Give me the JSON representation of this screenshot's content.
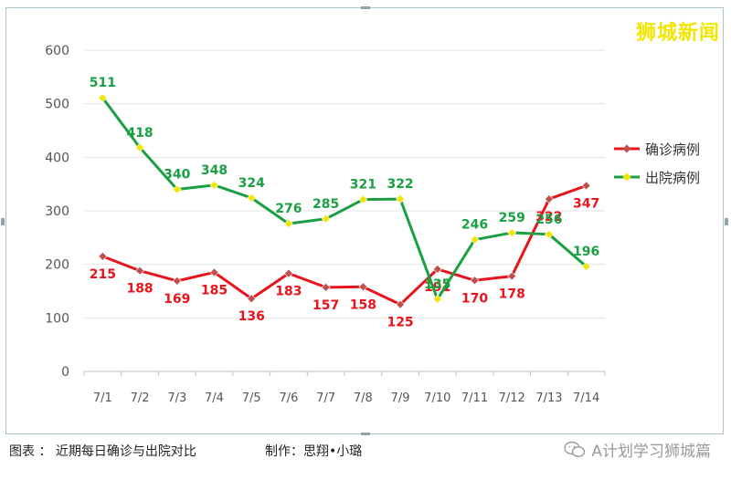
{
  "watermark": "狮城新闻",
  "caption": "图表 ： 近期每日确诊与出院对比",
  "credit": "制作：思翔•小璐",
  "source": "A计划学习狮城篇",
  "chart_data": {
    "type": "line",
    "categories": [
      "7/1",
      "7/2",
      "7/3",
      "7/4",
      "7/5",
      "7/6",
      "7/7",
      "7/8",
      "7/9",
      "7/10",
      "7/11",
      "7/12",
      "7/13",
      "7/14"
    ],
    "ylim": [
      0,
      600
    ],
    "yticks": [
      0,
      100,
      200,
      300,
      400,
      500,
      600
    ],
    "grid": true,
    "legend_position": "right",
    "series": [
      {
        "name": "确诊病例",
        "color": "#e8141c",
        "marker_color": "#c0504d",
        "label_color": "#e8141c",
        "label_pos": "below",
        "values": [
          215,
          188,
          169,
          185,
          136,
          183,
          157,
          158,
          125,
          191,
          170,
          178,
          322,
          347
        ]
      },
      {
        "name": "出院病例",
        "color": "#1aa043",
        "marker_color": "#f2e600",
        "label_color": "#1aa043",
        "label_pos": "above",
        "values": [
          511,
          418,
          340,
          348,
          324,
          276,
          285,
          321,
          322,
          135,
          246,
          259,
          256,
          196
        ]
      }
    ]
  }
}
